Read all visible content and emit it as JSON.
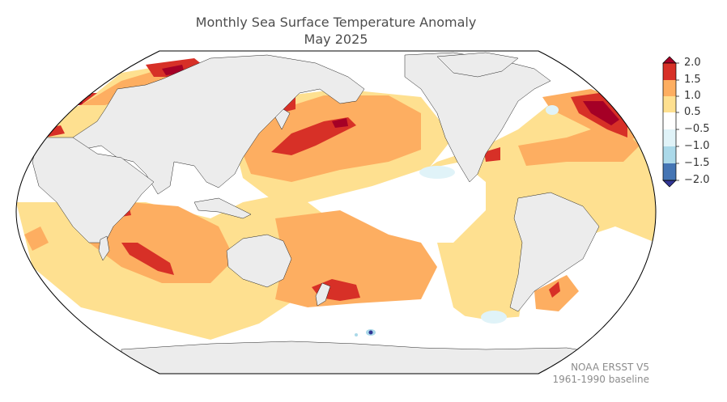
{
  "title": {
    "line1": "Monthly Sea Surface Temperature Anomaly",
    "line2": "May 2025"
  },
  "colorbar": {
    "ticks": [
      "2.0",
      "1.5",
      "1.0",
      "0.5",
      "−0.5",
      "−1.0",
      "−1.5",
      "−2.0"
    ],
    "colors": {
      "above_2": "#a50026",
      "1.5_2.0": "#d73027",
      "1.0_1.5": "#fdae61",
      "0.5_1.0": "#fee090",
      "neutral": "#ffffff",
      "-1.0_-0.5": "#e0f3f8",
      "-1.5_-1.0": "#abd9e9",
      "-2.0_-1.5": "#4575b4",
      "below_-2": "#313695",
      "land": "#ececec"
    }
  },
  "credits": {
    "source": "NOAA ERSST V5",
    "baseline": "1961-1990 baseline"
  }
}
